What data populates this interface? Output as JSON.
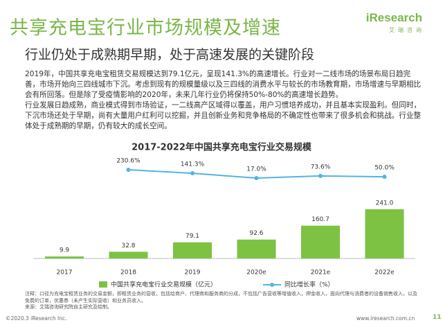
{
  "header": {
    "title": "共享充电宝行业市场规模及增速",
    "logo": "iResearch",
    "logo_sub": "艾瑞咨询"
  },
  "subtitle": "行业仍处于成熟期早期，处于高速发展的关键阶段",
  "paragraphs": [
    "2019年，中国共享充电宝租赁交易规模达到79.1亿元，呈现141.3%的高速增长。行业对一二线市场的场景布局日趋完善，市场开始向三四线城市下沉。考虑到现有的规模量级以及三四线的消费水平与较长的市场教育期，市场增速与早期相比会有所回落。但是除了受疫情影响的2020年，未来几年行业仍将保持50%-80%的高速增长趋势。",
    "行业发展日趋成熟，商业模式得到市场验证，一二线高产区域得以覆盖，用户习惯培养成功，并且基本实现盈利。但同时，下沉市场还处于早期，尚有大量用户红利可以挖掘，并且创新业务和竞争格局的不确定性也带来了很多机会和挑战。行业整体处于成熟期的早期，仍有较大的成长空间。"
  ],
  "chart_data": {
    "type": "bar",
    "title": "2017-2022年中国共享充电宝行业交易规模",
    "categories": [
      "2017",
      "2018",
      "2019",
      "2020e",
      "2021e",
      "2022e"
    ],
    "series": [
      {
        "name": "中国共享充电宝行业交易规模（亿元）",
        "color": "#7dc242",
        "values": [
          9.9,
          32.8,
          79.1,
          92.6,
          160.7,
          241.0
        ],
        "value_labels": [
          "9.9",
          "32.8",
          "79.1",
          "92.6",
          "160.7",
          "241.0"
        ]
      },
      {
        "name": "同比增长率（%）",
        "type": "line",
        "axis": "y2",
        "color": "#4fb3e8",
        "values": [
          null,
          230.6,
          141.3,
          17.0,
          73.6,
          50.0
        ],
        "value_labels": [
          null,
          "230.6%",
          "141.3%",
          "17.0%",
          "73.6%",
          "50.0%"
        ]
      }
    ]
  },
  "notes": [
    "注释：口径为充电宝租赁业务的交易金额，即租赁业务的营收，包括给商户、代理商和服务商的分成，不包括广告营收等增值收入，押金收入，面向代理与消费者的设备销售收入，以及免费的订单，优惠券（未产生实际营收）和业务员收入。",
    "来源：艾瑞咨询研究院自主研究及绘制。"
  ],
  "footer": {
    "copyright": "©2020.3 iResearch Inc.",
    "website": "www.iresearch.com.cn",
    "page": "11"
  }
}
